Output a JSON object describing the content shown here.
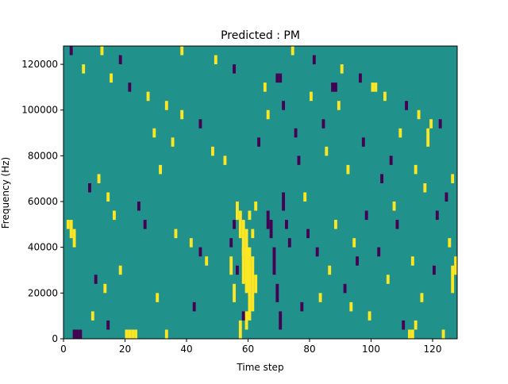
{
  "chart_data": {
    "type": "heatmap",
    "title": "Predicted : PM",
    "xlabel": "Time step",
    "ylabel": "Frequency (Hz)",
    "xlim": [
      0,
      128
    ],
    "ylim": [
      0,
      128000
    ],
    "x_ticks": [
      0,
      20,
      40,
      60,
      80,
      100,
      120
    ],
    "y_ticks": [
      0,
      20000,
      40000,
      60000,
      80000,
      100000,
      120000
    ],
    "x_tick_labels": [
      "0",
      "20",
      "40",
      "60",
      "80",
      "100",
      "120"
    ],
    "y_tick_labels": [
      "0",
      "20000",
      "40000",
      "60000",
      "80000",
      "100000",
      "120000"
    ],
    "background_value": 0,
    "value_levels": [
      -1,
      0,
      1
    ],
    "colors": {
      "background": "#21918c",
      "low": "#440154",
      "high": "#fde725"
    },
    "grid": false,
    "cells_description": "each cell = [time_step, frequency_bin_start_Hz, frequency_bin_end_Hz, value]",
    "cells": [
      [
        56,
        52000,
        60000,
        1
      ],
      [
        57,
        44000,
        56000,
        1
      ],
      [
        58,
        24000,
        52000,
        1
      ],
      [
        59,
        20000,
        48000,
        1
      ],
      [
        60,
        8000,
        40000,
        1
      ],
      [
        61,
        12000,
        36000,
        1
      ],
      [
        62,
        20000,
        28000,
        1
      ],
      [
        57,
        0,
        8000,
        1
      ],
      [
        59,
        4000,
        12000,
        1
      ],
      [
        60,
        52000,
        56000,
        1
      ],
      [
        61,
        44000,
        48000,
        1
      ],
      [
        55,
        16000,
        24000,
        1
      ],
      [
        54,
        28000,
        36000,
        1
      ],
      [
        58,
        36000,
        40000,
        1
      ],
      [
        66,
        48000,
        56000,
        -1
      ],
      [
        67,
        44000,
        52000,
        -1
      ],
      [
        68,
        28000,
        40000,
        -1
      ],
      [
        69,
        16000,
        24000,
        -1
      ],
      [
        70,
        4000,
        12000,
        -1
      ],
      [
        71,
        56000,
        64000,
        -1
      ],
      [
        72,
        48000,
        52000,
        -1
      ],
      [
        73,
        40000,
        44000,
        -1
      ],
      [
        58,
        8000,
        12000,
        -1
      ],
      [
        56,
        28000,
        32000,
        -1
      ],
      [
        54,
        40000,
        44000,
        -1
      ],
      [
        55,
        48000,
        52000,
        -1
      ],
      [
        3,
        0,
        4000,
        -1
      ],
      [
        4,
        0,
        4000,
        -1
      ],
      [
        5,
        0,
        4000,
        -1
      ],
      [
        20,
        0,
        4000,
        1
      ],
      [
        21,
        0,
        4000,
        1
      ],
      [
        22,
        0,
        4000,
        1
      ],
      [
        23,
        0,
        4000,
        1
      ],
      [
        112,
        0,
        4000,
        1
      ],
      [
        113,
        0,
        4000,
        1
      ],
      [
        114,
        4000,
        8000,
        1
      ],
      [
        2,
        44000,
        52000,
        1
      ],
      [
        3,
        40000,
        48000,
        1
      ],
      [
        1,
        48000,
        52000,
        1
      ],
      [
        87,
        108000,
        112000,
        -1
      ],
      [
        88,
        108000,
        112000,
        -1
      ],
      [
        69,
        112000,
        116000,
        -1
      ],
      [
        70,
        112000,
        116000,
        -1
      ],
      [
        100,
        108000,
        112000,
        1
      ],
      [
        101,
        108000,
        112000,
        1
      ],
      [
        118,
        84000,
        92000,
        1
      ],
      [
        119,
        92000,
        96000,
        1
      ],
      [
        126,
        20000,
        32000,
        1
      ],
      [
        127,
        28000,
        36000,
        1
      ],
      [
        62,
        56000,
        60000,
        1
      ],
      [
        2,
        124000,
        128000,
        -1
      ],
      [
        12,
        124000,
        128000,
        1
      ],
      [
        18,
        120000,
        124000,
        -1
      ],
      [
        38,
        124000,
        128000,
        1
      ],
      [
        49,
        120000,
        124000,
        1
      ],
      [
        55,
        116000,
        120000,
        -1
      ],
      [
        6,
        116000,
        120000,
        1
      ],
      [
        15,
        112000,
        116000,
        1
      ],
      [
        21,
        108000,
        112000,
        -1
      ],
      [
        27,
        104000,
        108000,
        1
      ],
      [
        33,
        100000,
        104000,
        1
      ],
      [
        38,
        96000,
        100000,
        1
      ],
      [
        44,
        92000,
        96000,
        -1
      ],
      [
        29,
        88000,
        92000,
        1
      ],
      [
        35,
        84000,
        88000,
        1
      ],
      [
        48,
        80000,
        84000,
        1
      ],
      [
        52,
        76000,
        80000,
        1
      ],
      [
        31,
        72000,
        76000,
        1
      ],
      [
        11,
        68000,
        72000,
        1
      ],
      [
        8,
        64000,
        68000,
        -1
      ],
      [
        14,
        60000,
        64000,
        1
      ],
      [
        24,
        56000,
        60000,
        -1
      ],
      [
        16,
        52000,
        56000,
        1
      ],
      [
        26,
        48000,
        52000,
        -1
      ],
      [
        36,
        44000,
        48000,
        1
      ],
      [
        41,
        40000,
        44000,
        1
      ],
      [
        44,
        36000,
        40000,
        -1
      ],
      [
        46,
        32000,
        36000,
        1
      ],
      [
        18,
        28000,
        32000,
        1
      ],
      [
        10,
        24000,
        28000,
        -1
      ],
      [
        13,
        20000,
        24000,
        1
      ],
      [
        30,
        16000,
        20000,
        1
      ],
      [
        42,
        12000,
        16000,
        -1
      ],
      [
        9,
        8000,
        12000,
        1
      ],
      [
        14,
        4000,
        8000,
        -1
      ],
      [
        33,
        0,
        4000,
        1
      ],
      [
        74,
        124000,
        128000,
        1
      ],
      [
        81,
        120000,
        124000,
        -1
      ],
      [
        90,
        116000,
        120000,
        1
      ],
      [
        96,
        112000,
        116000,
        -1
      ],
      [
        104,
        104000,
        108000,
        1
      ],
      [
        111,
        100000,
        104000,
        -1
      ],
      [
        115,
        96000,
        100000,
        1
      ],
      [
        122,
        92000,
        96000,
        -1
      ],
      [
        109,
        88000,
        92000,
        1
      ],
      [
        97,
        84000,
        88000,
        -1
      ],
      [
        85,
        80000,
        84000,
        1
      ],
      [
        76,
        76000,
        80000,
        -1
      ],
      [
        92,
        72000,
        76000,
        1
      ],
      [
        103,
        68000,
        72000,
        -1
      ],
      [
        117,
        64000,
        68000,
        1
      ],
      [
        124,
        60000,
        64000,
        -1
      ],
      [
        107,
        56000,
        60000,
        1
      ],
      [
        98,
        52000,
        56000,
        -1
      ],
      [
        88,
        48000,
        52000,
        1
      ],
      [
        79,
        44000,
        48000,
        -1
      ],
      [
        94,
        40000,
        44000,
        1
      ],
      [
        102,
        36000,
        40000,
        -1
      ],
      [
        113,
        32000,
        36000,
        1
      ],
      [
        120,
        28000,
        32000,
        -1
      ],
      [
        105,
        24000,
        28000,
        1
      ],
      [
        91,
        20000,
        24000,
        -1
      ],
      [
        83,
        16000,
        20000,
        1
      ],
      [
        77,
        12000,
        16000,
        -1
      ],
      [
        99,
        8000,
        12000,
        1
      ],
      [
        110,
        4000,
        8000,
        -1
      ],
      [
        123,
        0,
        4000,
        1
      ],
      [
        116,
        16000,
        20000,
        1
      ],
      [
        125,
        40000,
        44000,
        1
      ],
      [
        108,
        48000,
        52000,
        -1
      ],
      [
        95,
        32000,
        36000,
        -1
      ],
      [
        86,
        28000,
        32000,
        1
      ],
      [
        78,
        60000,
        64000,
        1
      ],
      [
        82,
        36000,
        40000,
        -1
      ],
      [
        93,
        12000,
        16000,
        1
      ],
      [
        106,
        76000,
        80000,
        -1
      ],
      [
        114,
        72000,
        76000,
        1
      ],
      [
        121,
        52000,
        56000,
        -1
      ],
      [
        126,
        68000,
        72000,
        1
      ],
      [
        89,
        100000,
        104000,
        1
      ],
      [
        84,
        92000,
        96000,
        -1
      ],
      [
        80,
        104000,
        108000,
        1
      ],
      [
        75,
        88000,
        92000,
        -1
      ],
      [
        66,
        96000,
        100000,
        1
      ],
      [
        63,
        84000,
        88000,
        -1
      ],
      [
        65,
        108000,
        112000,
        1
      ],
      [
        71,
        100000,
        104000,
        -1
      ]
    ]
  }
}
